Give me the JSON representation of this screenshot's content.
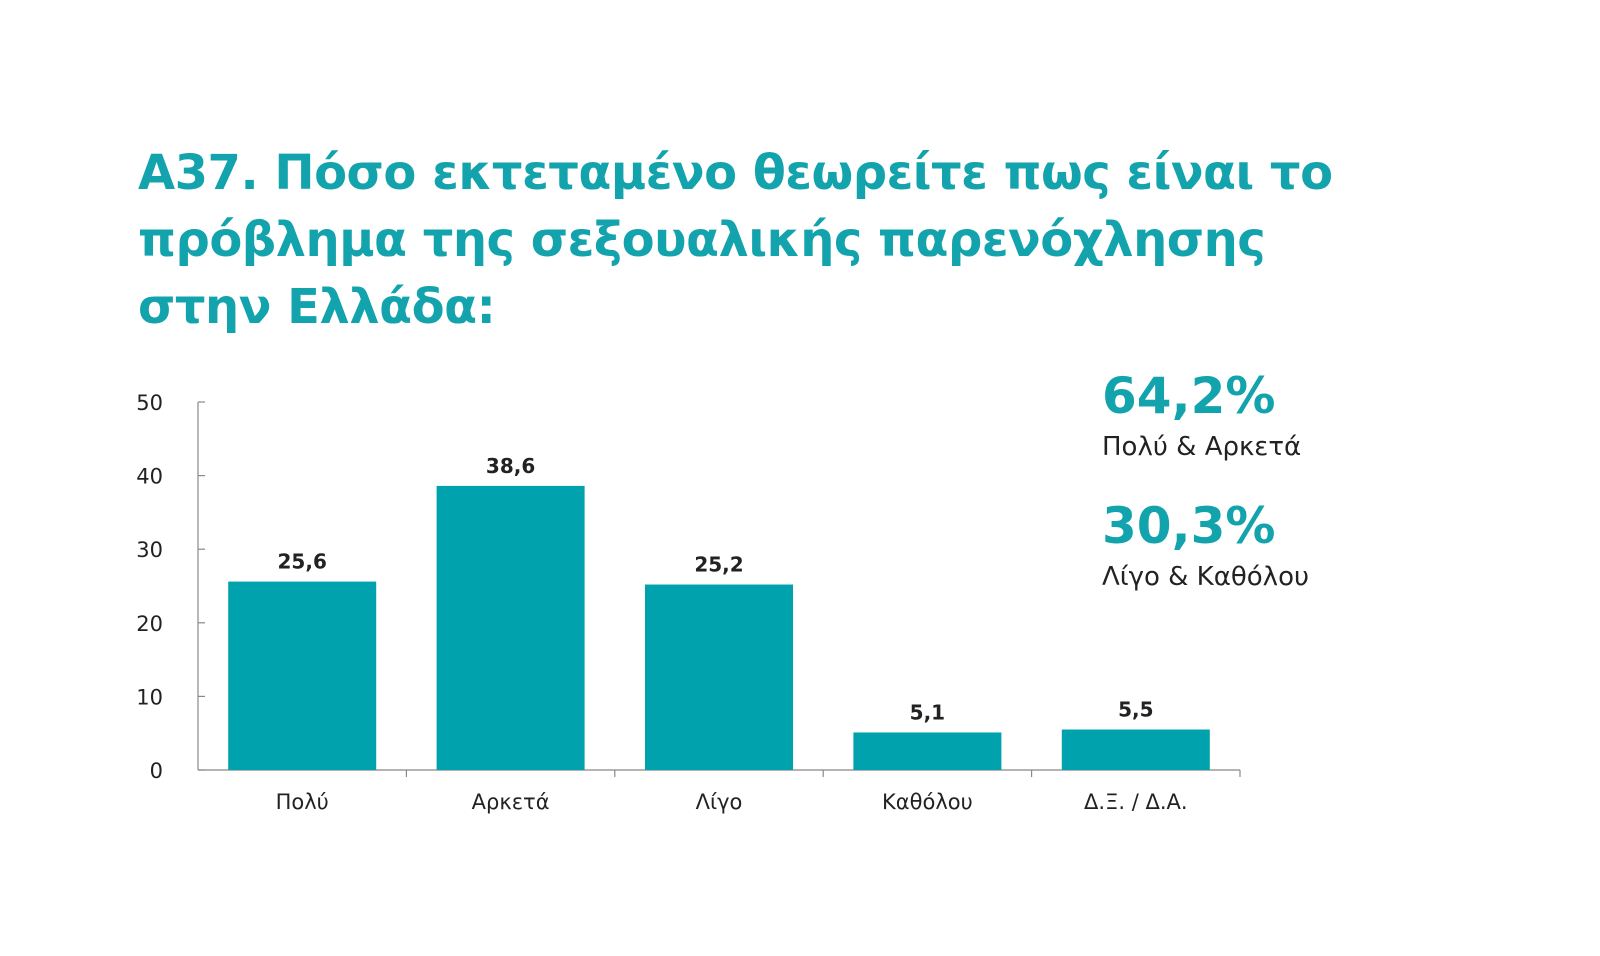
{
  "title_lines": [
    "A37. Πόσο εκτεταμένο θεωρείτε πως είναι το",
    "πρόβλημα της σεξουαλικής παρενόχλησης",
    "στην Ελλάδα:"
  ],
  "summary": [
    {
      "value": "64,2%",
      "label": "Πολύ & Αρκετά"
    },
    {
      "value": "30,3%",
      "label": "Λίγο & Καθόλου"
    }
  ],
  "colors": {
    "accent": "#13a3ad",
    "bar": "#00a3ad",
    "axis": "#888888",
    "text": "#222222"
  },
  "chart_data": {
    "type": "bar",
    "title": "A37. Πόσο εκτεταμένο θεωρείτε πως είναι το πρόβλημα της σεξουαλικής παρενόχλησης στην Ελλάδα:",
    "categories": [
      "Πολύ",
      "Αρκετά",
      "Λίγο",
      "Καθόλου",
      "Δ.Ξ. / Δ.Α."
    ],
    "values": [
      25.6,
      38.6,
      25.2,
      5.1,
      5.5
    ],
    "data_labels": [
      "25,6",
      "38,6",
      "25,2",
      "5,1",
      "5,5"
    ],
    "ylim": [
      0,
      50
    ],
    "yticks": [
      0,
      10,
      20,
      30,
      40,
      50
    ],
    "xlabel": "",
    "ylabel": "",
    "grid": false,
    "legend": "none"
  }
}
